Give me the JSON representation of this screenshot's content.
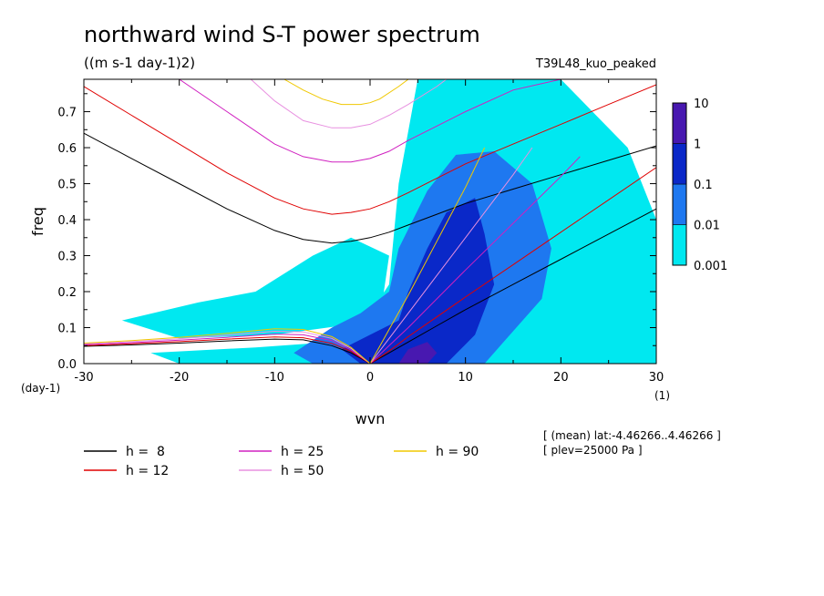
{
  "chart_data": {
    "type": "heatmap",
    "title": "northward wind S-T power spectrum",
    "subtitle": "((m s-1 day-1)2)",
    "run_label": "T39L48_kuo_peaked",
    "xlabel": "wvn",
    "ylabel": "freq",
    "x_unit": "(1)",
    "y_unit": "(day-1)",
    "xlim": [
      -30,
      30
    ],
    "ylim": [
      0,
      0.79
    ],
    "x_ticks": [
      -30,
      -20,
      -10,
      0,
      10,
      20,
      30
    ],
    "y_ticks": [
      0.0,
      0.1,
      0.2,
      0.3,
      0.4,
      0.5,
      0.6,
      0.7
    ],
    "x_tick_labels": [
      "-30",
      "-20",
      "-10",
      "0",
      "10",
      "20",
      "30"
    ],
    "y_tick_labels": [
      "0.0",
      "0.1",
      "0.2",
      "0.3",
      "0.4",
      "0.5",
      "0.6",
      "0.7"
    ],
    "colorbar": {
      "levels": [
        "0.001",
        "0.01",
        "0.1",
        "1",
        "10"
      ],
      "colors": [
        "#00e8f0",
        "#1e78f0",
        "#0a28c8",
        "#4818b0"
      ],
      "scale": "log"
    },
    "power_regions": [
      {
        "level": 0,
        "polygon": [
          [
            -23,
            0.03
          ],
          [
            -12,
            0.045
          ],
          [
            -4,
            0.06
          ],
          [
            -1,
            0.1
          ],
          [
            2,
            0.22
          ],
          [
            3,
            0.5
          ],
          [
            5,
            0.79
          ],
          [
            20,
            0.79
          ],
          [
            27,
            0.6
          ],
          [
            30,
            0.4
          ],
          [
            30,
            0.0
          ],
          [
            -20,
            0.0
          ]
        ]
      },
      {
        "level": 0,
        "polygon": [
          [
            -26,
            0.12
          ],
          [
            -18,
            0.17
          ],
          [
            -12,
            0.2
          ],
          [
            -6,
            0.3
          ],
          [
            -2,
            0.35
          ],
          [
            2,
            0.3
          ],
          [
            1,
            0.12
          ],
          [
            -10,
            0.08
          ],
          [
            -20,
            0.07
          ]
        ]
      },
      {
        "level": 1,
        "polygon": [
          [
            -6,
            0.0
          ],
          [
            -8,
            0.03
          ],
          [
            -4,
            0.1
          ],
          [
            -1,
            0.14
          ],
          [
            2,
            0.2
          ],
          [
            3,
            0.32
          ],
          [
            6,
            0.48
          ],
          [
            9,
            0.58
          ],
          [
            13,
            0.59
          ],
          [
            17,
            0.5
          ],
          [
            19,
            0.32
          ],
          [
            18,
            0.18
          ],
          [
            14,
            0.06
          ],
          [
            12,
            0.0
          ]
        ]
      },
      {
        "level": 2,
        "polygon": [
          [
            -1,
            0.0
          ],
          [
            -3,
            0.04
          ],
          [
            0,
            0.08
          ],
          [
            3,
            0.12
          ],
          [
            4,
            0.2
          ],
          [
            6,
            0.32
          ],
          [
            8,
            0.42
          ],
          [
            11,
            0.46
          ],
          [
            12,
            0.36
          ],
          [
            13,
            0.22
          ],
          [
            11,
            0.08
          ],
          [
            8,
            0.0
          ]
        ]
      },
      {
        "level": 3,
        "polygon": [
          [
            3,
            0.0
          ],
          [
            4,
            0.04
          ],
          [
            6,
            0.06
          ],
          [
            7,
            0.03
          ],
          [
            6,
            0.0
          ]
        ]
      }
    ],
    "series": [
      {
        "name": "h =  8",
        "curves": [
          {
            "x": [
              -30,
              -25,
              -20,
              -15,
              -10,
              -7,
              -4,
              -2,
              0,
              2,
              4,
              7,
              10,
              15,
              20,
              25,
              30
            ],
            "y": [
              0.64,
              0.57,
              0.5,
              0.43,
              0.37,
              0.345,
              0.335,
              0.34,
              0.35,
              0.365,
              0.385,
              0.415,
              0.445,
              0.485,
              0.525,
              0.565,
              0.605
            ]
          },
          {
            "x": [
              -30,
              -25,
              -20,
              -15,
              -10,
              -7,
              -4,
              -2,
              0,
              2,
              4,
              7,
              10,
              15,
              20,
              25,
              30
            ],
            "y": [
              0.048,
              0.052,
              0.057,
              0.063,
              0.068,
              0.066,
              0.05,
              0.03,
              0.0,
              0.03,
              0.06,
              0.105,
              0.15,
              0.22,
              0.29,
              0.36,
              0.43
            ]
          }
        ]
      },
      {
        "name": "h = 12",
        "curves": [
          {
            "x": [
              -30,
              -25,
              -20,
              -15,
              -10,
              -7,
              -4,
              -2,
              0,
              2,
              4,
              7,
              10,
              15,
              20,
              25,
              30
            ],
            "y": [
              0.77,
              0.69,
              0.61,
              0.53,
              0.46,
              0.43,
              0.415,
              0.42,
              0.43,
              0.45,
              0.475,
              0.515,
              0.555,
              0.61,
              0.665,
              0.72,
              0.775
            ]
          },
          {
            "x": [
              -30,
              -25,
              -20,
              -15,
              -10,
              -7,
              -4,
              -2,
              0,
              2,
              4,
              7,
              10,
              15,
              20,
              25,
              30
            ],
            "y": [
              0.05,
              0.055,
              0.061,
              0.068,
              0.074,
              0.072,
              0.056,
              0.034,
              0.0,
              0.035,
              0.075,
              0.13,
              0.185,
              0.275,
              0.365,
              0.455,
              0.545
            ]
          }
        ]
      },
      {
        "name": "h = 25",
        "curves": [
          {
            "x": [
              -20,
              -15,
              -10,
              -7,
              -4,
              -2,
              0,
              2,
              4,
              7,
              10,
              15,
              20,
              25,
              30
            ],
            "y": [
              0.79,
              0.7,
              0.61,
              0.575,
              0.56,
              0.56,
              0.57,
              0.59,
              0.62,
              0.66,
              0.7,
              0.76,
              0.79,
              0.79,
              0.79
            ]
          },
          {
            "x": [
              -30,
              -25,
              -20,
              -15,
              -10,
              -7,
              -4,
              -2,
              0,
              2,
              4,
              7,
              10,
              15,
              20,
              22
            ],
            "y": [
              0.053,
              0.058,
              0.065,
              0.073,
              0.082,
              0.08,
              0.064,
              0.038,
              0.0,
              0.05,
              0.1,
              0.18,
              0.26,
              0.39,
              0.52,
              0.575
            ]
          }
        ]
      },
      {
        "name": "h = 50",
        "curves": [
          {
            "x": [
              -12.5,
              -10,
              -7,
              -4,
              -2,
              0,
              2,
              4,
              7,
              8
            ],
            "y": [
              0.79,
              0.73,
              0.675,
              0.655,
              0.655,
              0.665,
              0.69,
              0.72,
              0.77,
              0.79
            ]
          },
          {
            "x": [
              -30,
              -25,
              -20,
              -15,
              -10,
              -7,
              -4,
              -2,
              0,
              2,
              4,
              7,
              10,
              15,
              17
            ],
            "y": [
              0.055,
              0.061,
              0.069,
              0.079,
              0.09,
              0.088,
              0.07,
              0.042,
              0.0,
              0.07,
              0.14,
              0.245,
              0.35,
              0.525,
              0.6
            ]
          }
        ]
      },
      {
        "name": "h = 90",
        "curves": [
          {
            "x": [
              -9,
              -7,
              -5,
              -3,
              -1,
              0,
              1,
              3,
              4
            ],
            "y": [
              0.79,
              0.76,
              0.735,
              0.72,
              0.72,
              0.725,
              0.735,
              0.77,
              0.79
            ]
          },
          {
            "x": [
              -30,
              -25,
              -20,
              -15,
              -10,
              -7,
              -4,
              -2,
              0,
              2,
              4,
              7,
              10,
              12
            ],
            "y": [
              0.057,
              0.064,
              0.073,
              0.084,
              0.097,
              0.095,
              0.075,
              0.045,
              0.0,
              0.095,
              0.19,
              0.34,
              0.49,
              0.6
            ]
          }
        ]
      }
    ],
    "series_colors": [
      "#000000",
      "#e00000",
      "#d020c0",
      "#e890e0",
      "#f0c800"
    ],
    "annotations": [
      "[ (mean) lat:-4.46266..4.46266 ]",
      "[ plev=25000 Pa ]"
    ],
    "grid": false,
    "legend_placement": "bottom"
  }
}
